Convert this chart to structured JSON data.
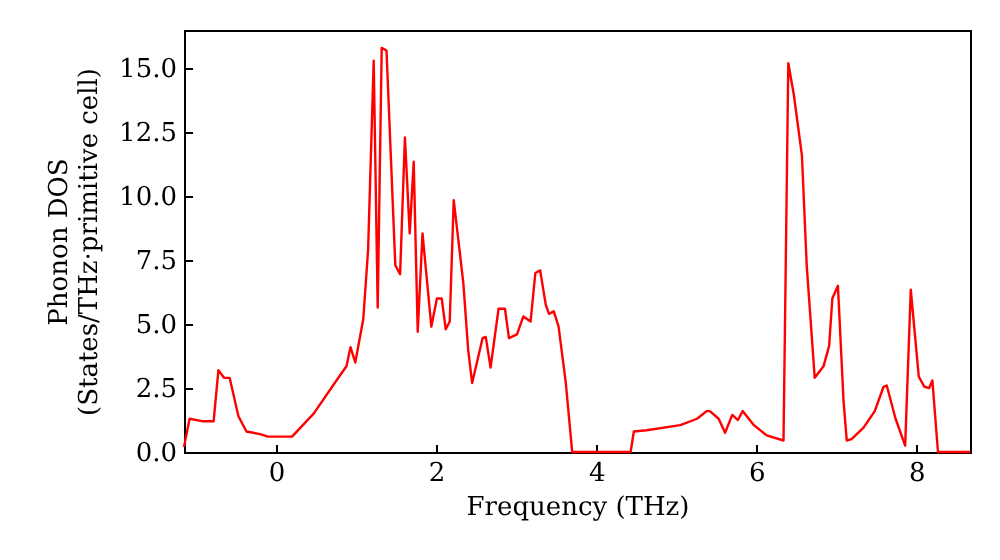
{
  "chart_data": {
    "type": "line",
    "xlabel": "Frequency (THz)",
    "ylabel": "Phonon DOS\n(States/THz·primitive cell)",
    "xlim": [
      -1.15,
      8.67
    ],
    "ylim": [
      0,
      16.5
    ],
    "xticks": [
      0,
      2,
      4,
      6,
      8
    ],
    "yticks": [
      {
        "value": 0,
        "label": "0.0"
      },
      {
        "value": 2.5,
        "label": "2.5"
      },
      {
        "value": 5,
        "label": "5.0"
      },
      {
        "value": 7.5,
        "label": "7.5"
      },
      {
        "value": 10,
        "label": "10.0"
      },
      {
        "value": 12.5,
        "label": "12.5"
      },
      {
        "value": 15,
        "label": "15.0"
      }
    ],
    "grid": false,
    "line_style": "solid",
    "series": [
      {
        "color": "#ff0000",
        "x": [
          -1.15,
          -1.08,
          -0.91,
          -0.78,
          -0.72,
          -0.65,
          -0.58,
          -0.47,
          -0.37,
          -0.2,
          -0.1,
          0.2,
          0.47,
          0.8,
          0.88,
          0.93,
          0.99,
          1.09,
          1.15,
          1.22,
          1.27,
          1.32,
          1.38,
          1.49,
          1.55,
          1.61,
          1.67,
          1.72,
          1.77,
          1.83,
          1.94,
          2.01,
          2.07,
          2.12,
          2.17,
          2.22,
          2.34,
          2.4,
          2.45,
          2.58,
          2.62,
          2.68,
          2.78,
          2.86,
          2.91,
          3.01,
          3.09,
          3.18,
          3.24,
          3.3,
          3.37,
          3.41,
          3.47,
          3.53,
          3.62,
          3.7,
          4.43,
          4.47,
          4.63,
          5.05,
          5.26,
          5.38,
          5.42,
          5.53,
          5.61,
          5.7,
          5.77,
          5.83,
          5.97,
          6.13,
          6.34,
          6.4,
          6.47,
          6.57,
          6.63,
          6.73,
          6.84,
          6.91,
          6.95,
          7.02,
          7.09,
          7.13,
          7.19,
          7.34,
          7.48,
          7.59,
          7.63,
          7.74,
          7.86,
          7.93,
          8.03,
          8.1,
          8.16,
          8.2,
          8.27,
          8.67
        ],
        "values": [
          0.2,
          1.3,
          1.2,
          1.2,
          3.2,
          2.9,
          2.9,
          1.4,
          0.8,
          0.7,
          0.6,
          0.6,
          1.5,
          3.0,
          3.35,
          4.1,
          3.5,
          5.2,
          7.9,
          15.3,
          5.65,
          15.8,
          15.7,
          7.3,
          6.95,
          12.3,
          8.55,
          11.35,
          4.7,
          8.55,
          4.9,
          6.0,
          6.0,
          4.8,
          5.1,
          9.85,
          6.6,
          4.0,
          2.7,
          4.45,
          4.5,
          3.3,
          5.6,
          5.6,
          4.45,
          4.6,
          5.3,
          5.1,
          7.0,
          7.1,
          5.75,
          5.4,
          5.5,
          4.9,
          2.7,
          0,
          0,
          0.8,
          0.85,
          1.05,
          1.3,
          1.6,
          1.6,
          1.3,
          0.75,
          1.45,
          1.25,
          1.6,
          1.05,
          0.65,
          0.45,
          15.2,
          13.95,
          11.6,
          7.3,
          2.9,
          3.35,
          4.15,
          6.0,
          6.5,
          2.0,
          0.45,
          0.5,
          0.95,
          1.6,
          2.55,
          2.6,
          1.3,
          0.25,
          6.35,
          2.95,
          2.55,
          2.5,
          2.8,
          0,
          0
        ]
      }
    ]
  }
}
